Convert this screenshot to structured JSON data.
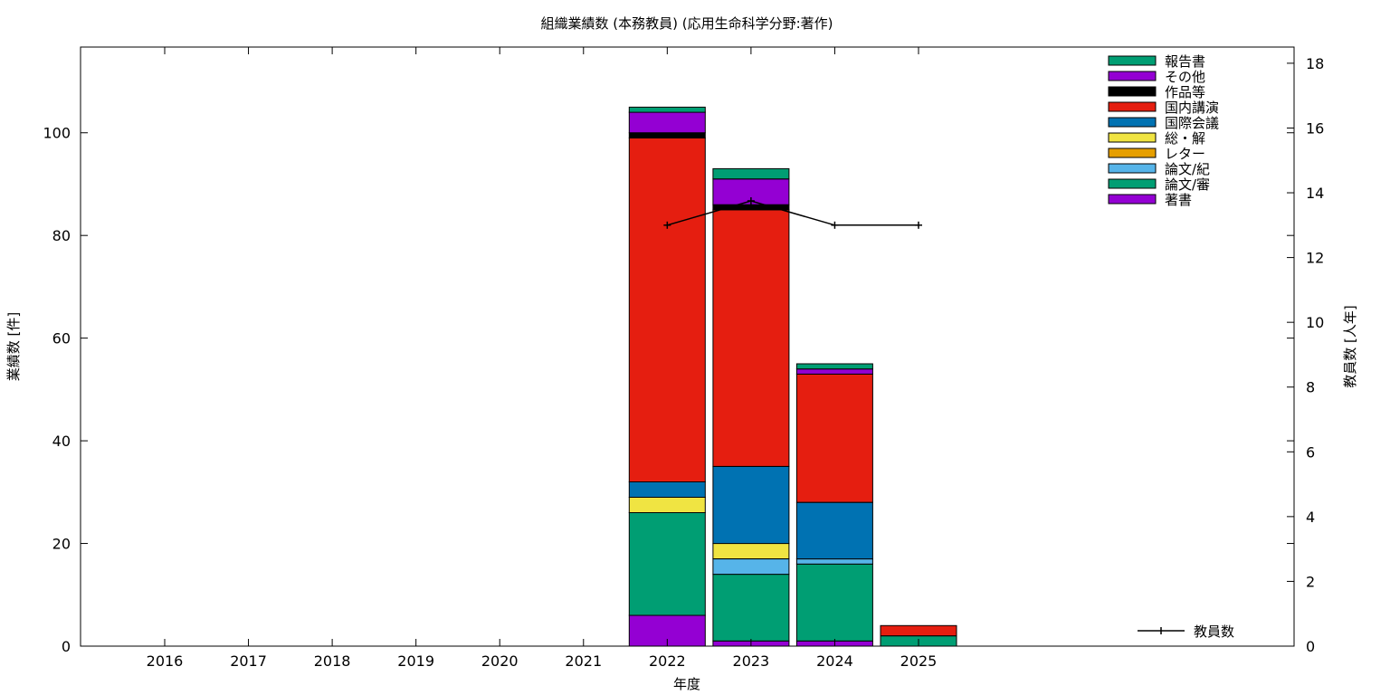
{
  "chart_data": {
    "type": "bar",
    "stacked": true,
    "title": "組織業績数 (本務教員) (応用生命科学分野:著作)",
    "xlabel": "年度",
    "ylabel": "業績数 [件]",
    "y2label": "教員数 [人年]",
    "categories": [
      "2016",
      "2017",
      "2018",
      "2019",
      "2020",
      "2021",
      "2022",
      "2023",
      "2024",
      "2025"
    ],
    "ylim": [
      0,
      116.7
    ],
    "y2lim": [
      0,
      18.5
    ],
    "yticks": [
      0,
      20,
      40,
      60,
      80,
      100
    ],
    "y2ticks": [
      0,
      2,
      4,
      6,
      8,
      10,
      12,
      14,
      16,
      18
    ],
    "grid": false,
    "legend_position": "top-right",
    "series": [
      {
        "name": "著書",
        "color": "#9400d3",
        "values": [
          0,
          0,
          0,
          0,
          0,
          0,
          6,
          1,
          1,
          0
        ]
      },
      {
        "name": "論文/審",
        "color": "#009e73",
        "values": [
          0,
          0,
          0,
          0,
          0,
          0,
          20,
          13,
          15,
          2
        ]
      },
      {
        "name": "論文/紀",
        "color": "#56b4e9",
        "values": [
          0,
          0,
          0,
          0,
          0,
          0,
          0,
          3,
          1,
          0
        ]
      },
      {
        "name": "レター",
        "color": "#e69f00",
        "values": [
          0,
          0,
          0,
          0,
          0,
          0,
          0,
          0,
          0,
          0
        ]
      },
      {
        "name": "総・解",
        "color": "#f0e442",
        "values": [
          0,
          0,
          0,
          0,
          0,
          0,
          3,
          3,
          0,
          0
        ]
      },
      {
        "name": "国際会議",
        "color": "#0072b2",
        "values": [
          0,
          0,
          0,
          0,
          0,
          0,
          3,
          15,
          11,
          0
        ]
      },
      {
        "name": "国内講演",
        "color": "#e51e10",
        "values": [
          0,
          0,
          0,
          0,
          0,
          0,
          67,
          50,
          25,
          2
        ]
      },
      {
        "name": "作品等",
        "color": "#000000",
        "values": [
          0,
          0,
          0,
          0,
          0,
          0,
          1,
          1,
          0,
          0
        ]
      },
      {
        "name": "その他",
        "color": "#9400d3",
        "values": [
          0,
          0,
          0,
          0,
          0,
          0,
          4,
          5,
          1,
          0
        ]
      },
      {
        "name": "報告書",
        "color": "#009e73",
        "values": [
          0,
          0,
          0,
          0,
          0,
          0,
          1,
          2,
          1,
          0
        ]
      }
    ],
    "line_series": {
      "name": "教員数",
      "color": "#000000",
      "axis": "y2",
      "x": [
        "2022",
        "2023",
        "2024",
        "2025"
      ],
      "values": [
        13.0,
        13.75,
        13.0,
        13.0
      ]
    }
  }
}
